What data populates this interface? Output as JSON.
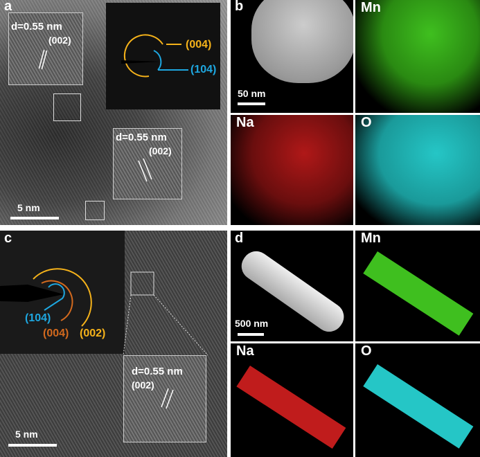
{
  "panels": {
    "a": {
      "label": "a",
      "scale_bar": "5 nm",
      "inset1": {
        "d": "d=0.55 nm",
        "plane": "(002)"
      },
      "inset2": {
        "d": "d=0.55 nm",
        "plane": "(002)"
      },
      "saed": [
        "(004)",
        "(104)"
      ]
    },
    "b": {
      "label": "b",
      "scale_bar": "50 nm",
      "maps": [
        "Mn",
        "Na",
        "O"
      ]
    },
    "c": {
      "label": "c",
      "scale_bar": "5 nm",
      "inset": {
        "d": "d=0.55 nm",
        "plane": "(002)"
      },
      "saed": [
        "(104)",
        "(004)",
        "(002)"
      ]
    },
    "d": {
      "label": "d",
      "scale_bar": "500 nm",
      "maps": [
        "Mn",
        "Na",
        "O"
      ]
    }
  },
  "colors": {
    "mn": "#3fbf1f",
    "na": "#c81e1e",
    "o": "#25c6c6",
    "orange": "#f5b21a",
    "blue": "#1ea7e0",
    "brown": "#d2691e"
  }
}
